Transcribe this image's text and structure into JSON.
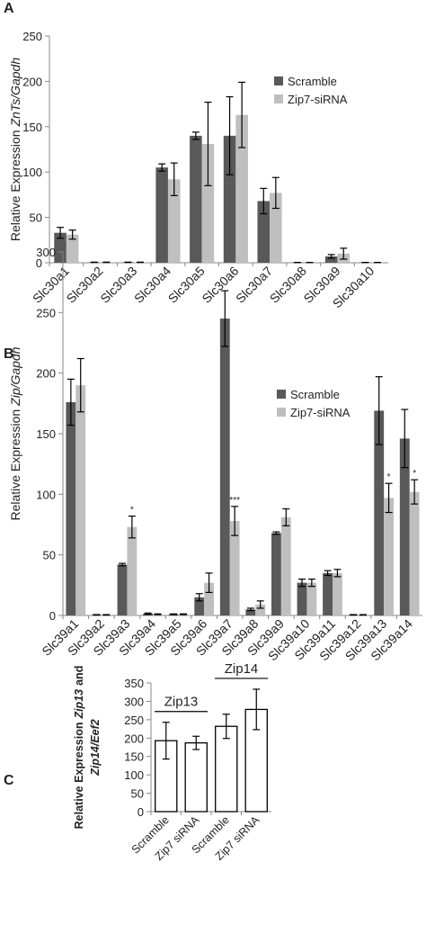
{
  "chart_data": [
    {
      "type": "bar",
      "panel": "A",
      "y_label": [
        [
          {
            "text": "Relative Expression"
          },
          {
            "text": "ZnTs/Gapdh",
            "italic": true
          }
        ]
      ],
      "categories": [
        "Slc30a1",
        "Slc30a2",
        "Slc30a3",
        "Slc30a4",
        "Slc30a5",
        "Slc30a6",
        "Slc30a7",
        "Slc30a8",
        "Slc30a9",
        "Slc30a10"
      ],
      "series": [
        {
          "name": "Scramble",
          "color": "#595959",
          "values": [
            33,
            0.5,
            0.5,
            105,
            140,
            140,
            68,
            0.3,
            7,
            0.3
          ],
          "errors": [
            6,
            0.2,
            0.2,
            4,
            4,
            43,
            14,
            0.1,
            2,
            0.1
          ]
        },
        {
          "name": "Zip7-siRNA",
          "color": "#bfbfbf",
          "values": [
            31,
            0.5,
            0.5,
            92,
            131,
            163,
            77,
            0.3,
            10,
            0.3
          ],
          "errors": [
            5,
            0.2,
            0.2,
            18,
            46,
            36,
            17,
            0.1,
            6,
            0.1
          ]
        }
      ],
      "ylim": [
        0,
        250
      ],
      "yticks": [
        0,
        50,
        100,
        150,
        200,
        250
      ],
      "legend": "upper right"
    },
    {
      "type": "bar",
      "panel": "B",
      "y_label": [
        [
          {
            "text": "Relative Expression"
          },
          {
            "text": "Zip/Gapdh",
            "italic": true
          }
        ]
      ],
      "categories": [
        "Slc39a1",
        "Slc39a2",
        "Slc39a3",
        "Slc39a4",
        "Slc39a5",
        "Slc39a6",
        "Slc39a7",
        "Slc39a8",
        "Slc39a9",
        "Slc39a10",
        "Slc39a11",
        "Slc39a12",
        "Slc39a13",
        "Slc39a14"
      ],
      "series": [
        {
          "name": "Scramble",
          "color": "#595959",
          "values": [
            176,
            0.5,
            42,
            1.5,
            1,
            15,
            245,
            5,
            68,
            27,
            35,
            0.5,
            169,
            146
          ],
          "errors": [
            19,
            0.2,
            1,
            0.5,
            0.3,
            3,
            23,
            1,
            1,
            3,
            2,
            0.2,
            28,
            24
          ]
        },
        {
          "name": "Zip7-siRNA",
          "color": "#bfbfbf",
          "values": [
            190,
            0.5,
            73,
            1,
            1,
            27,
            78,
            9,
            81,
            27,
            35,
            0.5,
            97,
            102
          ],
          "errors": [
            22,
            0.2,
            9,
            0.3,
            0.3,
            8,
            12,
            3,
            7,
            3,
            3,
            0.2,
            12,
            10
          ],
          "significance": [
            null,
            null,
            "*",
            null,
            null,
            null,
            "***",
            null,
            null,
            null,
            null,
            null,
            "*",
            "*"
          ]
        }
      ],
      "ylim": [
        0,
        300
      ],
      "yticks": [
        0,
        50,
        100,
        150,
        200,
        250,
        300
      ],
      "legend": "upper right"
    },
    {
      "type": "bar",
      "panel": "C",
      "y_label": [
        [
          {
            "text": "Relative Expression"
          },
          {
            "text": "Zip13",
            "italic": true
          },
          {
            "text": "and"
          }
        ],
        [
          {
            "text": "Zip14",
            "italic": true
          },
          {
            "text": "/Eef2",
            "italic": true
          }
        ]
      ],
      "categories": [
        "Scramble",
        "Zip7 siRNA",
        "Scramble",
        "Zip7 siRNA"
      ],
      "groups": [
        "Zip13",
        "Zip14"
      ],
      "series": [
        {
          "color": "#ffffff",
          "edgecolor": "#000000",
          "values": [
            193,
            187,
            232,
            278
          ],
          "errors": [
            50,
            18,
            33,
            55
          ]
        }
      ],
      "ylim": [
        0,
        350
      ],
      "yticks": [
        0,
        50,
        100,
        150,
        200,
        250,
        300,
        350
      ]
    }
  ]
}
